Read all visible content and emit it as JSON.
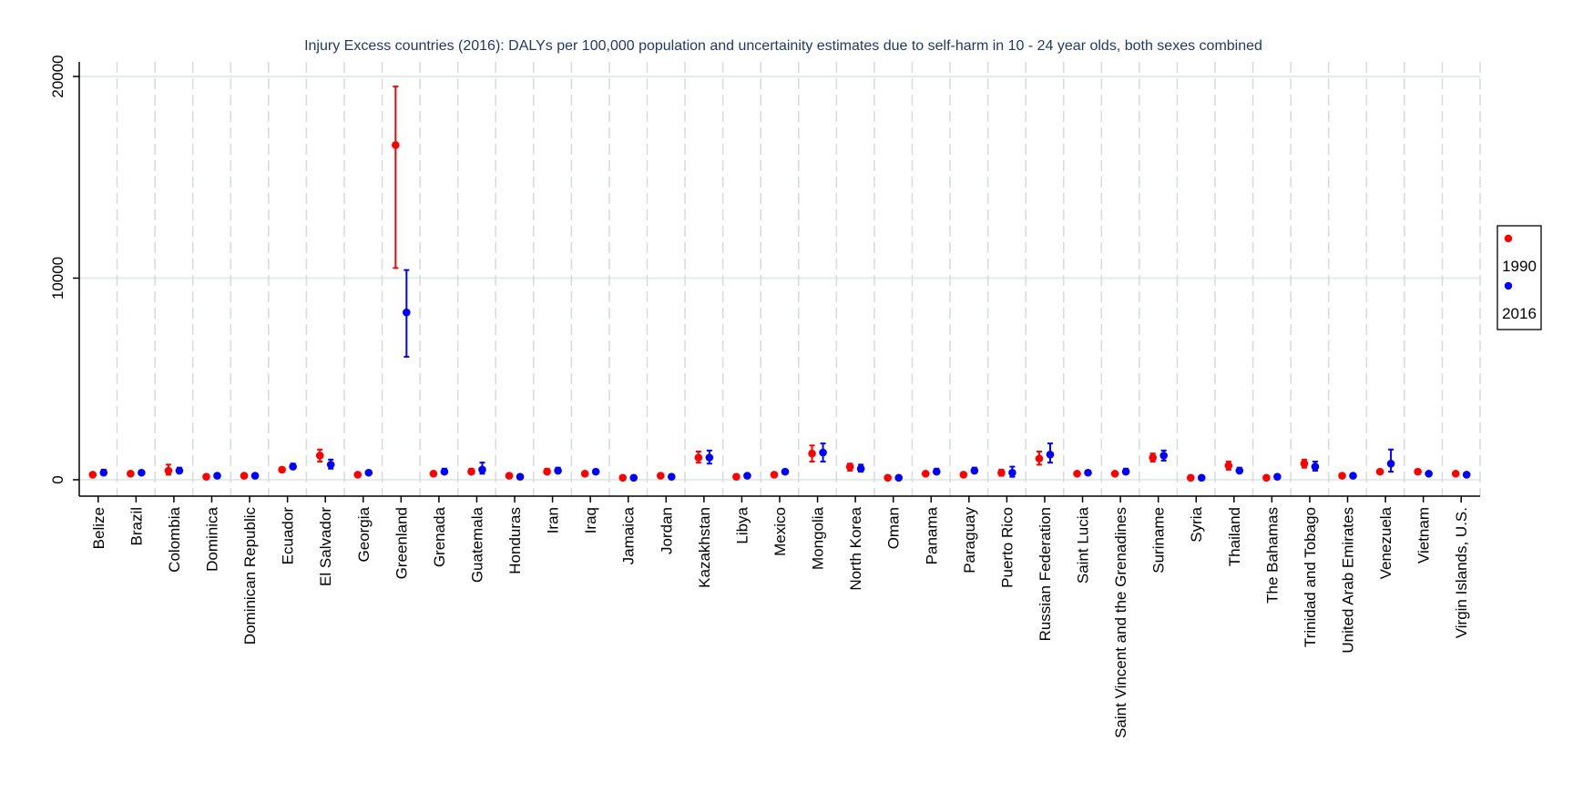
{
  "chart_data": {
    "type": "scatter",
    "title": "Injury Excess countries (2016): DALYs per 100,000 population and uncertainity estimates due to self-harm in 10 - 24 year olds, both sexes combined",
    "xlabel": "",
    "ylabel": "",
    "ylim": [
      0,
      20000
    ],
    "yticks": [
      0,
      10000,
      20000
    ],
    "ytick_labels": [
      "0",
      "10000",
      "20000"
    ],
    "grid": true,
    "legend_position": "right",
    "categories": [
      "Belize",
      "Brazil",
      "Colombia",
      "Dominica",
      "Dominican Republic",
      "Ecuador",
      "El Salvador",
      "Georgia",
      "Greenland",
      "Grenada",
      "Guatemala",
      "Honduras",
      "Iran",
      "Iraq",
      "Jamaica",
      "Jordan",
      "Kazakhstan",
      "Libya",
      "Mexico",
      "Mongolia",
      "North Korea",
      "Oman",
      "Panama",
      "Paraguay",
      "Puerto Rico",
      "Russian Federation",
      "Saint Lucia",
      "Saint Vincent and the Grenadines",
      "Suriname",
      "Syria",
      "Thailand",
      "The Bahamas",
      "Trinidad and Tobago",
      "United Arab Emirates",
      "Venezuela",
      "Vietnam",
      "Virgin Islands, U.S."
    ],
    "series": [
      {
        "name": "1990",
        "color": "#ff0000",
        "values": [
          250,
          300,
          450,
          150,
          200,
          500,
          1200,
          250,
          16600,
          300,
          400,
          200,
          400,
          300,
          100,
          200,
          1100,
          150,
          250,
          1300,
          650,
          100,
          300,
          250,
          350,
          1050,
          300,
          300,
          1100,
          100,
          700,
          100,
          800,
          200,
          400,
          400,
          300
        ],
        "lower": [
          200,
          250,
          250,
          100,
          150,
          400,
          900,
          200,
          10500,
          250,
          300,
          150,
          300,
          250,
          50,
          150,
          850,
          100,
          200,
          900,
          450,
          50,
          250,
          200,
          200,
          750,
          250,
          250,
          900,
          50,
          500,
          50,
          600,
          150,
          300,
          300,
          250
        ],
        "upper": [
          300,
          350,
          750,
          200,
          250,
          600,
          1500,
          300,
          19500,
          350,
          550,
          250,
          550,
          350,
          150,
          250,
          1400,
          200,
          300,
          1700,
          800,
          150,
          350,
          300,
          500,
          1400,
          350,
          350,
          1300,
          150,
          900,
          150,
          1000,
          250,
          500,
          500,
          350
        ]
      },
      {
        "name": "2016",
        "color": "#0000ff",
        "values": [
          350,
          350,
          450,
          200,
          200,
          650,
          750,
          350,
          8300,
          400,
          500,
          150,
          450,
          400,
          100,
          150,
          1100,
          200,
          400,
          1350,
          550,
          100,
          400,
          450,
          350,
          1250,
          350,
          400,
          1200,
          100,
          450,
          150,
          650,
          200,
          800,
          300,
          250
        ],
        "lower": [
          250,
          300,
          350,
          150,
          150,
          550,
          550,
          300,
          6100,
          300,
          300,
          100,
          350,
          300,
          50,
          100,
          800,
          150,
          300,
          900,
          400,
          50,
          300,
          350,
          150,
          850,
          250,
          300,
          950,
          50,
          350,
          100,
          450,
          150,
          400,
          250,
          200
        ],
        "upper": [
          500,
          400,
          600,
          250,
          250,
          800,
          1000,
          450,
          10400,
          550,
          850,
          200,
          600,
          500,
          150,
          200,
          1450,
          250,
          500,
          1800,
          750,
          150,
          550,
          600,
          650,
          1800,
          450,
          550,
          1450,
          150,
          600,
          200,
          900,
          250,
          1500,
          350,
          300
        ]
      }
    ]
  }
}
